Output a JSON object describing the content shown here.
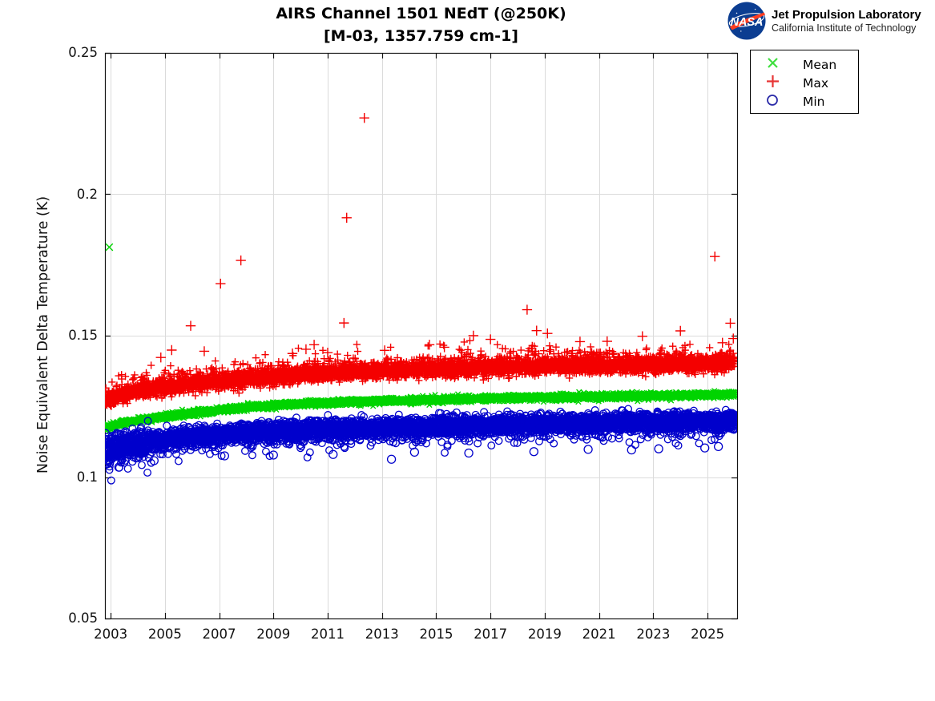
{
  "header": {
    "title_line1": "AIRS Channel 1501 NEdT (@250K)",
    "title_line2": "[M-03, 1357.759 cm-1]"
  },
  "branding": {
    "org_name": "Jet Propulsion Laboratory",
    "org_sub": "California Institute of Technology",
    "logo_text": "NASA",
    "logo_blue": "#0b3d91",
    "logo_red": "#fc3d21"
  },
  "legend": {
    "items": [
      {
        "label": "Mean",
        "marker": "x",
        "color": "#00d400"
      },
      {
        "label": "Max",
        "marker": "+",
        "color": "#f40000"
      },
      {
        "label": "Min",
        "marker": "o",
        "color": "#0000cc"
      }
    ]
  },
  "chart_data": {
    "type": "scatter",
    "title": "AIRS Channel 1501 NEdT (@250K)",
    "subtitle": "[M-03, 1357.759 cm-1]",
    "xlabel": "",
    "ylabel": "Noise Equivalent Delta Temperature (K)",
    "xlim": [
      2002.79,
      2026.09
    ],
    "ylim": [
      0.05,
      0.25
    ],
    "x_ticks": [
      2003,
      2005,
      2007,
      2009,
      2011,
      2013,
      2015,
      2017,
      2019,
      2021,
      2023,
      2025
    ],
    "x_tick_labels": [
      "2003",
      "2005",
      "2007",
      "2009",
      "2011",
      "2013",
      "2015",
      "2017",
      "2019",
      "2021",
      "2023",
      "2025"
    ],
    "y_ticks": [
      0.05,
      0.1,
      0.15,
      0.2,
      0.25
    ],
    "y_tick_labels": [
      "0.05",
      "0.1",
      "0.15",
      "0.2",
      "0.25"
    ],
    "grid": true,
    "legend_position": "outside-upper-right",
    "time_span": [
      2002.8,
      2026.0
    ],
    "points_per_series": 5600,
    "seed": 7,
    "series": [
      {
        "name": "Mean",
        "marker": "x",
        "color": "#00d400",
        "trend_anchors": [
          [
            2002.79,
            0.1172
          ],
          [
            2003.5,
            0.1192
          ],
          [
            2004.5,
            0.1208
          ],
          [
            2006,
            0.1226
          ],
          [
            2008,
            0.1247
          ],
          [
            2010,
            0.1259
          ],
          [
            2012,
            0.1266
          ],
          [
            2014,
            0.1271
          ],
          [
            2016,
            0.1276
          ],
          [
            2018,
            0.128
          ],
          [
            2020,
            0.1283
          ],
          [
            2022,
            0.1286
          ],
          [
            2024,
            0.1289
          ],
          [
            2026,
            0.1292
          ]
        ],
        "noise_sigma": 0.0005,
        "spike_prob": 0,
        "spike_scale": 0,
        "spike_dir": 1,
        "outliers": [
          [
            2002.95,
            0.1813
          ]
        ]
      },
      {
        "name": "Max",
        "marker": "+",
        "color": "#f40000",
        "trend_anchors": [
          [
            2002.79,
            0.1272
          ],
          [
            2003.5,
            0.1292
          ],
          [
            2004.5,
            0.131
          ],
          [
            2006,
            0.133
          ],
          [
            2008,
            0.1344
          ],
          [
            2010,
            0.136
          ],
          [
            2012,
            0.1371
          ],
          [
            2014,
            0.1378
          ],
          [
            2016,
            0.1384
          ],
          [
            2018,
            0.1389
          ],
          [
            2020,
            0.1392
          ],
          [
            2022,
            0.1395
          ],
          [
            2024,
            0.1398
          ],
          [
            2026,
            0.1402
          ]
        ],
        "noise_sigma": 0.0013,
        "spike_prob": 0.25,
        "spike_scale": 0.0017,
        "spike_dir": 1,
        "outliers": [
          [
            2004.85,
            0.1423
          ],
          [
            2005.25,
            0.1449
          ],
          [
            2005.95,
            0.1535
          ],
          [
            2006.45,
            0.1445
          ],
          [
            2007.05,
            0.1684
          ],
          [
            2007.8,
            0.1766
          ],
          [
            2009.7,
            0.1437
          ],
          [
            2010.2,
            0.1452
          ],
          [
            2010.5,
            0.1468
          ],
          [
            2011.0,
            0.144
          ],
          [
            2011.6,
            0.1545
          ],
          [
            2011.7,
            0.1917
          ],
          [
            2012.35,
            0.227
          ],
          [
            2013.1,
            0.1448
          ],
          [
            2014.75,
            0.1468
          ],
          [
            2015.3,
            0.1459
          ],
          [
            2016.37,
            0.15
          ],
          [
            2017.0,
            0.1487
          ],
          [
            2018.35,
            0.1592
          ],
          [
            2018.7,
            0.1518
          ],
          [
            2019.1,
            0.1508
          ],
          [
            2020.3,
            0.1479
          ],
          [
            2021.3,
            0.148
          ],
          [
            2022.6,
            0.1498
          ],
          [
            2024.0,
            0.1517
          ],
          [
            2025.27,
            0.178
          ],
          [
            2025.55,
            0.1475
          ],
          [
            2025.84,
            0.1544
          ],
          [
            2025.95,
            0.149
          ]
        ]
      },
      {
        "name": "Min",
        "marker": "o",
        "color": "#0000cc",
        "trend_anchors": [
          [
            2002.79,
            0.1094
          ],
          [
            2003.5,
            0.1112
          ],
          [
            2004.5,
            0.1128
          ],
          [
            2006,
            0.1146
          ],
          [
            2008,
            0.1158
          ],
          [
            2010,
            0.1167
          ],
          [
            2012,
            0.1173
          ],
          [
            2014,
            0.1178
          ],
          [
            2016,
            0.1183
          ],
          [
            2018,
            0.1188
          ],
          [
            2020,
            0.1192
          ],
          [
            2022,
            0.1195
          ],
          [
            2024,
            0.1198
          ],
          [
            2026,
            0.12
          ]
        ],
        "noise_sigma": 0.0015,
        "spike_prob": 0.22,
        "spike_scale": 0.0016,
        "spike_dir": -1,
        "outliers": [
          [
            2003.3,
            0.1035
          ],
          [
            2004.6,
            0.1058
          ],
          [
            2007.2,
            0.1075
          ],
          [
            2009.0,
            0.1078
          ],
          [
            2011.2,
            0.108
          ],
          [
            2013.35,
            0.1063
          ],
          [
            2014.2,
            0.1088
          ],
          [
            2016.2,
            0.1085
          ],
          [
            2018.6,
            0.109
          ],
          [
            2020.6,
            0.1098
          ],
          [
            2022.2,
            0.1096
          ],
          [
            2023.2,
            0.11
          ],
          [
            2024.9,
            0.1103
          ],
          [
            2025.4,
            0.1108
          ]
        ]
      }
    ]
  }
}
